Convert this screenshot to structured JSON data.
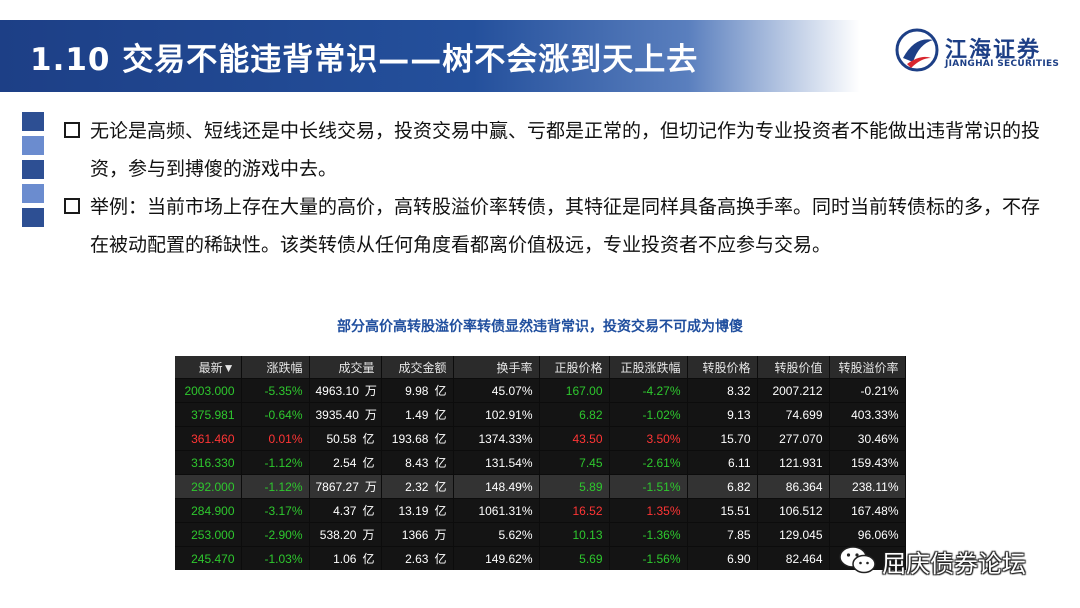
{
  "header": {
    "title": "1.10 交易不能违背常识——树不会涨到天上去",
    "band_color": "#1d3f86"
  },
  "logo": {
    "name_cn": "江海证券",
    "name_en": "JIANGHAI SECURITIES",
    "icon": "jianghai-logo-icon"
  },
  "bullets": [
    "无论是高频、短线还是中长线交易，投资交易中赢、亏都是正常的，但切记作为专业投资者不能做出违背常识的投资，参与到搏傻的游戏中去。",
    "举例：当前市场上存在大量的高价，高转股溢价率转债，其特征是同样具备高换手率。同时当前转债标的多，不存在被动配置的稀缺性。该类转债从任何角度看都离价值极远，专业投资者不应参与交易。"
  ],
  "table": {
    "caption": "部分高价高转股溢价率转债显然违背常识，投资交易不可成为博傻",
    "headers": [
      "最新▼",
      "涨跌幅",
      "成交量",
      "成交金额",
      "换手率",
      "正股价格",
      "正股涨跌幅",
      "转股价格",
      "转股价值",
      "转股溢价率"
    ],
    "rows": [
      {
        "latest": "2003.000",
        "change": "-5.35%",
        "volume": "4963.10",
        "volume_unit": "万",
        "amount": "9.98",
        "amount_unit": "亿",
        "turnover": "45.07%",
        "stock_price": "167.00",
        "stock_change": "-4.27%",
        "conv_price": "8.32",
        "conv_value": "2007.212",
        "premium": "-0.21%",
        "color": "g"
      },
      {
        "latest": "375.981",
        "change": "-0.64%",
        "volume": "3935.40",
        "volume_unit": "万",
        "amount": "1.49",
        "amount_unit": "亿",
        "turnover": "102.91%",
        "stock_price": "6.82",
        "stock_change": "-1.02%",
        "conv_price": "9.13",
        "conv_value": "74.699",
        "premium": "403.33%",
        "color": "g"
      },
      {
        "latest": "361.460",
        "change": "0.01%",
        "volume": "50.58",
        "volume_unit": "亿",
        "amount": "193.68",
        "amount_unit": "亿",
        "turnover": "1374.33%",
        "stock_price": "43.50",
        "stock_change": "3.50%",
        "conv_price": "15.70",
        "conv_value": "277.070",
        "premium": "30.46%",
        "color": "r"
      },
      {
        "latest": "316.330",
        "change": "-1.12%",
        "volume": "2.54",
        "volume_unit": "亿",
        "amount": "8.43",
        "amount_unit": "亿",
        "turnover": "131.54%",
        "stock_price": "7.45",
        "stock_change": "-2.61%",
        "conv_price": "6.11",
        "conv_value": "121.931",
        "premium": "159.43%",
        "color": "g"
      },
      {
        "latest": "292.000",
        "change": "-1.12%",
        "volume": "7867.27",
        "volume_unit": "万",
        "amount": "2.32",
        "amount_unit": "亿",
        "turnover": "148.49%",
        "stock_price": "5.89",
        "stock_change": "-1.51%",
        "conv_price": "6.82",
        "conv_value": "86.364",
        "premium": "238.11%",
        "color": "g",
        "highlight": true
      },
      {
        "latest": "284.900",
        "change": "-3.17%",
        "volume": "4.37",
        "volume_unit": "亿",
        "amount": "13.19",
        "amount_unit": "亿",
        "turnover": "1061.31%",
        "stock_price": "16.52",
        "stock_change": "1.35%",
        "conv_price": "15.51",
        "conv_value": "106.512",
        "premium": "167.48%",
        "color": "g",
        "stock_color": "r"
      },
      {
        "latest": "253.000",
        "change": "-2.90%",
        "volume": "538.20",
        "volume_unit": "万",
        "amount": "1366",
        "amount_unit": "万",
        "turnover": "5.62%",
        "stock_price": "10.13",
        "stock_change": "-1.36%",
        "conv_price": "7.85",
        "conv_value": "129.045",
        "premium": "96.06%",
        "color": "g"
      },
      {
        "latest": "245.470",
        "change": "-1.03%",
        "volume": "1.06",
        "volume_unit": "亿",
        "amount": "2.63",
        "amount_unit": "亿",
        "turnover": "149.62%",
        "stock_price": "5.69",
        "stock_change": "-1.56%",
        "conv_price": "6.90",
        "conv_value": "82.464",
        "premium": "",
        "color": "g"
      }
    ]
  },
  "watermark": {
    "text": "屈庆债券论坛",
    "icon": "wechat-icon"
  },
  "colors": {
    "up": "#ff3535",
    "down": "#2ec82e",
    "accent": "#1f4e9e"
  }
}
